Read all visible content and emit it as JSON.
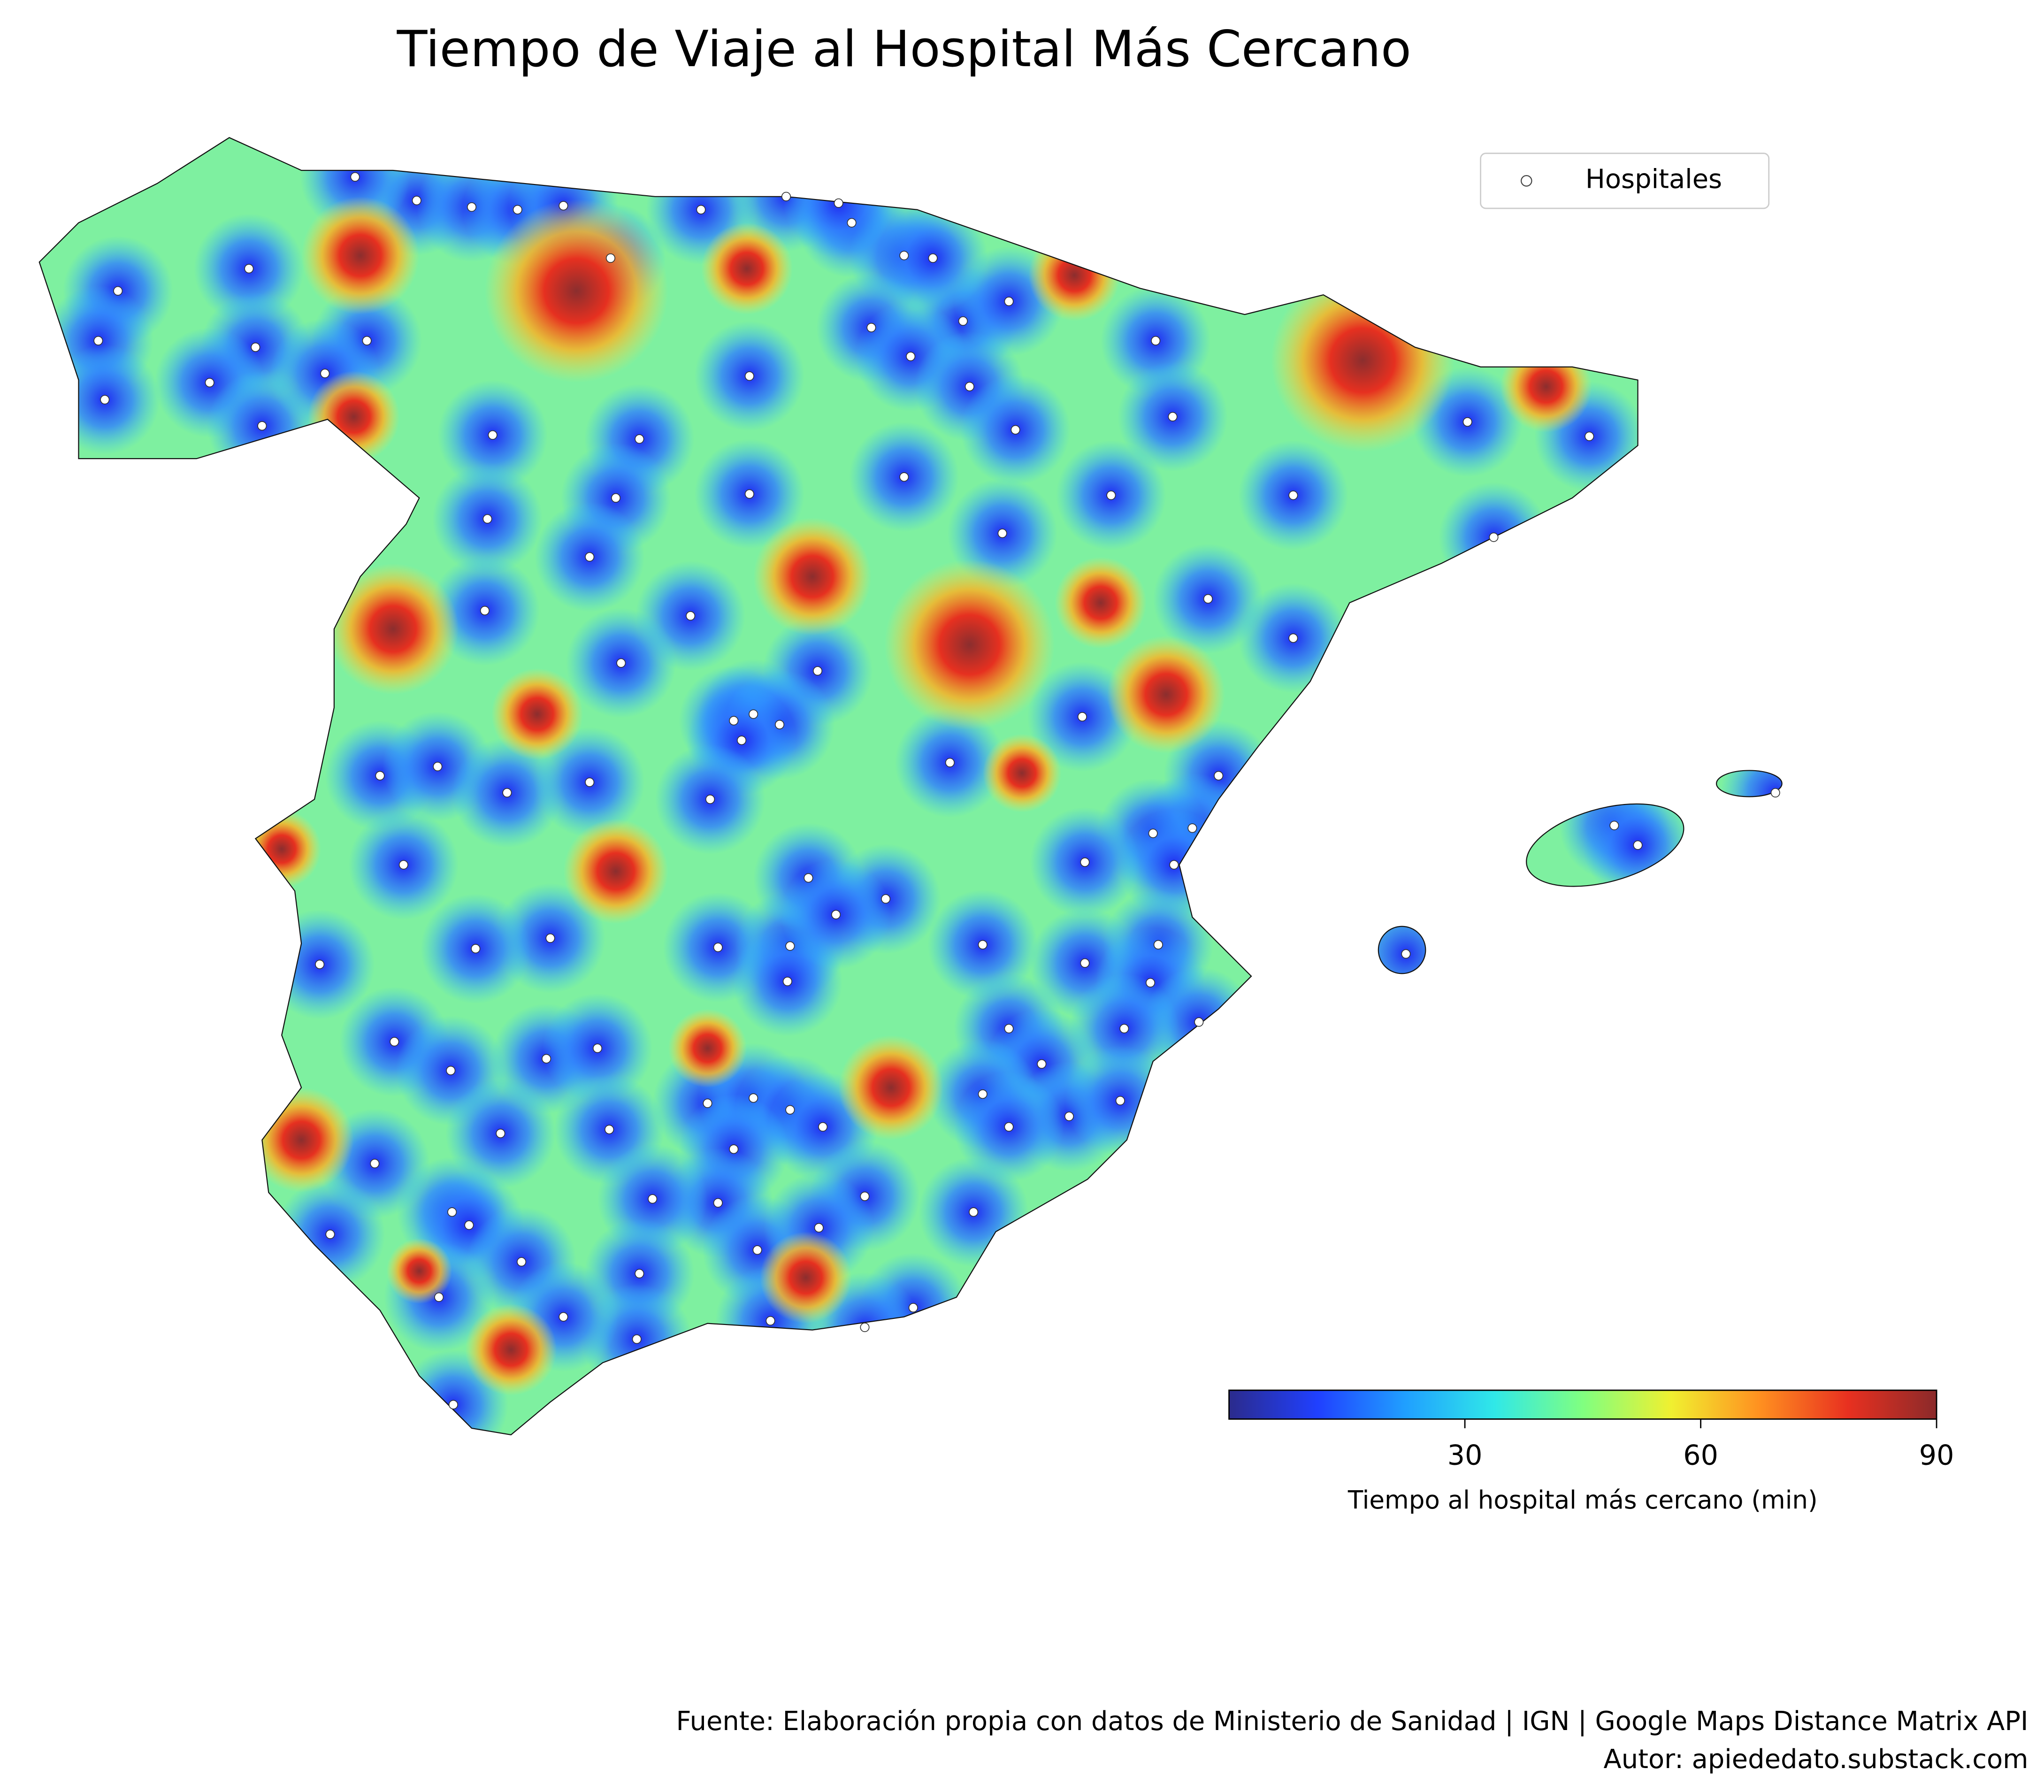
{
  "title": "Tiempo de Viaje al Hospital Más Cercano",
  "legend": {
    "label": "Hospitales"
  },
  "colorbar": {
    "label": "Tiempo al hospital más cercano (min)",
    "clim": [
      0,
      90
    ],
    "ticks": [
      30,
      60,
      90
    ],
    "cmap": "jet"
  },
  "footer": {
    "source": "Fuente: Elaboración propia con datos de Ministerio de Sanidad | IGN | Google Maps Distance Matrix API",
    "author": "Autor: apiededato.substack.com"
  }
}
